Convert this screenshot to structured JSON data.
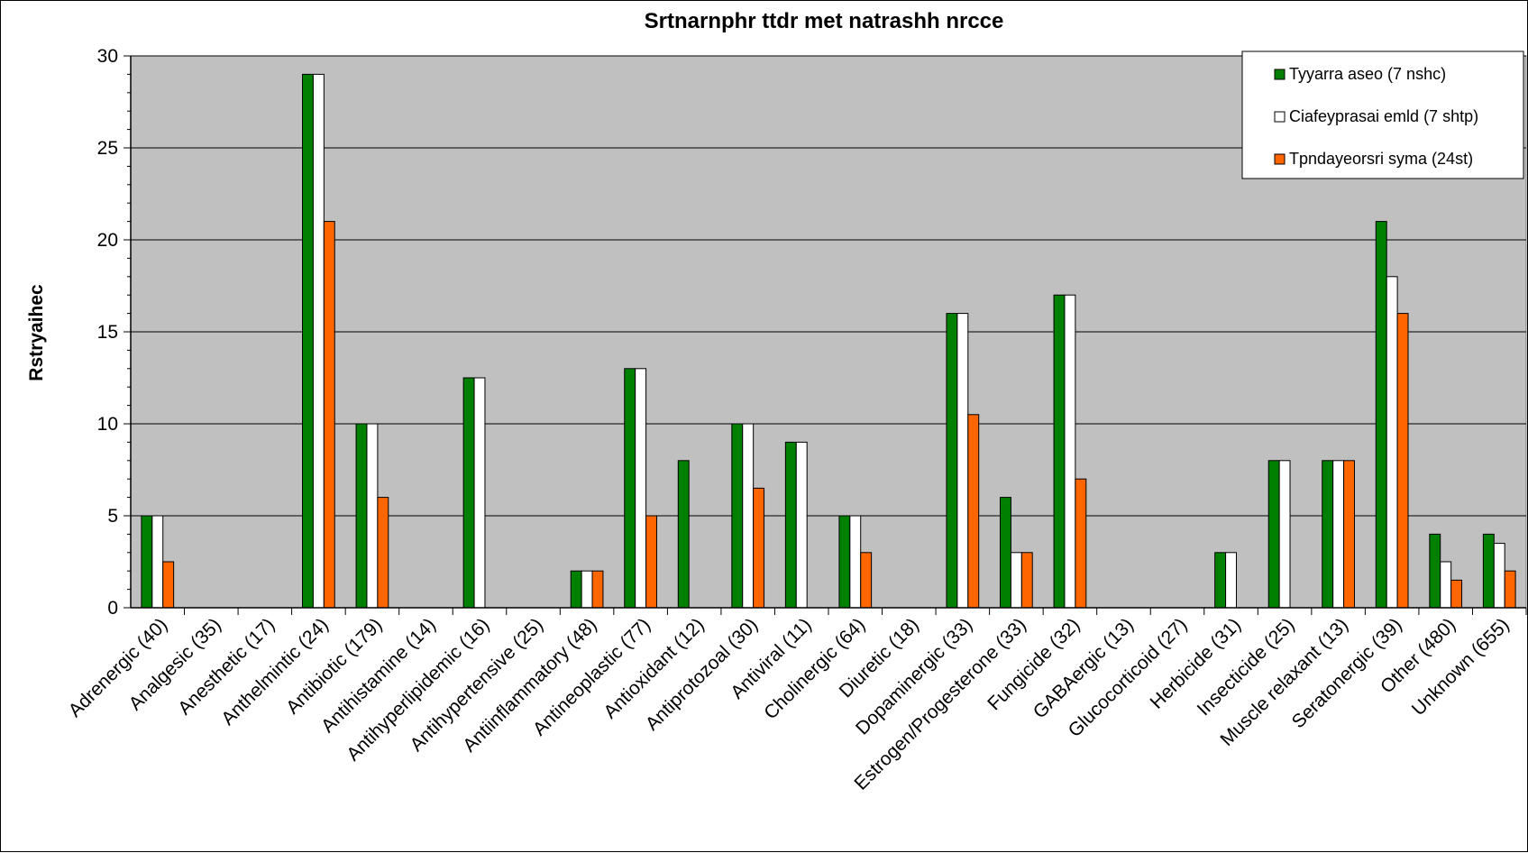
{
  "chart_data": {
    "type": "bar",
    "title": "Srtnarnphr ttdr met natrashh nrcce",
    "xlabel": "",
    "ylabel": "Rstryaihec",
    "ylim": [
      0,
      30
    ],
    "yticks": [
      "0",
      "5",
      "10",
      "15",
      "20",
      "25",
      "30"
    ],
    "grid": true,
    "legend_position": "top-right",
    "plot_background": "#c0c0c0",
    "categories": [
      "Adrenergic (40)",
      "Analgesic (35)",
      "Anesthetic (17)",
      "Anthelmintic (24)",
      "Antibiotic (179)",
      "Antihistamine (14)",
      "Antihyperlipidemic (16)",
      "Antihypertensive (25)",
      "Antiinflammatory (48)",
      "Antineoplastic (77)",
      "Antioxidant (12)",
      "Antiprotozoal (30)",
      "Antiviral (11)",
      "Cholinergic (64)",
      "Diuretic (18)",
      "Dopaminergic (33)",
      "Estrogen/Progesterone (33)",
      "Fungicide (32)",
      "GABAergic (13)",
      "Glucocorticoid (27)",
      "Herbicide (31)",
      "Insecticide (25)",
      "Muscle relaxant (13)",
      "Seratonergic (39)",
      "Other (480)",
      "Unknown (655)"
    ],
    "series": [
      {
        "name": "Tyyarra aseo  (7 nshc)",
        "color": "#008000",
        "values": [
          5,
          0,
          0,
          29,
          10,
          0,
          12.5,
          0,
          2,
          13,
          8,
          10,
          9,
          5,
          0,
          16,
          6,
          17,
          0,
          0,
          3,
          8,
          8,
          21,
          4,
          4
        ]
      },
      {
        "name": "Ciafeyprasai emld (7 shtp)",
        "color": "#ffffff",
        "values": [
          5,
          0,
          0,
          29,
          10,
          0,
          12.5,
          0,
          2,
          13,
          0,
          10,
          9,
          5,
          0,
          16,
          3,
          17,
          0,
          0,
          3,
          8,
          8,
          18,
          2.5,
          3.5
        ]
      },
      {
        "name": "Tpndayeorsri syma  (24st)",
        "color": "#ff6600",
        "values": [
          2.5,
          0,
          0,
          21,
          6,
          0,
          0,
          0,
          2,
          5,
          0,
          6.5,
          0,
          3,
          0,
          10.5,
          3,
          7,
          0,
          0,
          0,
          0,
          8,
          16,
          1.5,
          2
        ]
      }
    ]
  }
}
